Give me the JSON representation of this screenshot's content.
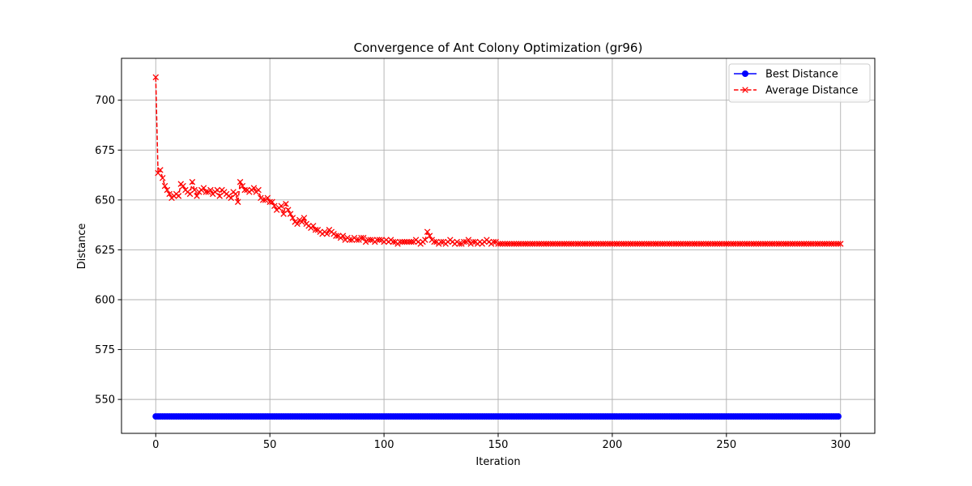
{
  "chart_data": {
    "type": "line",
    "title": "Convergence of Ant Colony Optimization (gr96)",
    "xlabel": "Iteration",
    "ylabel": "Distance",
    "xlim": [
      -15,
      315
    ],
    "ylim": [
      533,
      721
    ],
    "xticks": [
      0,
      50,
      100,
      150,
      200,
      250,
      300
    ],
    "xtick_labels": [
      "0",
      "50",
      "100",
      "150",
      "200",
      "250",
      "300"
    ],
    "yticks": [
      550,
      575,
      600,
      625,
      650,
      675,
      700
    ],
    "ytick_labels": [
      "550",
      "575",
      "600",
      "625",
      "650",
      "675",
      "700"
    ],
    "grid": true,
    "legend_position": "top-right",
    "series": [
      {
        "name": "Best Distance",
        "color": "#0000ff",
        "marker": "circle",
        "linestyle": "solid",
        "x_start": 0,
        "x_end": 299,
        "constant_value": 541.5
      },
      {
        "name": "Average Distance",
        "color": "#ff0000",
        "marker": "x",
        "linestyle": "dashed",
        "x_start": 0,
        "values": [
          711.5,
          663.5,
          665,
          661,
          657,
          655,
          653,
          651,
          652,
          653,
          652,
          658,
          657,
          655,
          654,
          653,
          659,
          655,
          652,
          654,
          655,
          656,
          654,
          654,
          655,
          653,
          654,
          655,
          652,
          655,
          654,
          653,
          652,
          651,
          654,
          653,
          649,
          659,
          657,
          655,
          655,
          654,
          655,
          656,
          654,
          655,
          651,
          650,
          650,
          651,
          649,
          649,
          647,
          645,
          646,
          647,
          643,
          648,
          645,
          643,
          641,
          639,
          638,
          640,
          639,
          641,
          638,
          637,
          636,
          637,
          635,
          635,
          634,
          633,
          634,
          633,
          635,
          634,
          633,
          632,
          632,
          631,
          632,
          630,
          631,
          630,
          630,
          631,
          630,
          630,
          631,
          631,
          629,
          630,
          630,
          630,
          629,
          630,
          630,
          630,
          629,
          630,
          629,
          630,
          629,
          629,
          628,
          629,
          629,
          629,
          629,
          629,
          629,
          629,
          630,
          629,
          628,
          629,
          630,
          634,
          632,
          630,
          629,
          629,
          628,
          629,
          629,
          628,
          629,
          630,
          629,
          628,
          629,
          628,
          628,
          629,
          629,
          630,
          628,
          629,
          629,
          628,
          629,
          628,
          629,
          630,
          629,
          628,
          629,
          629,
          628,
          628,
          628,
          628,
          628,
          628,
          628,
          628,
          628,
          628,
          628,
          628,
          628,
          628,
          628,
          628,
          628,
          628,
          628,
          628,
          628,
          628,
          628,
          628,
          628,
          628,
          628,
          628,
          628,
          628,
          628,
          628,
          628,
          628,
          628,
          628,
          628,
          628,
          628,
          628,
          628,
          628,
          628,
          628,
          628,
          628,
          628,
          628,
          628,
          628,
          628,
          628,
          628,
          628,
          628,
          628,
          628,
          628,
          628,
          628,
          628,
          628,
          628,
          628,
          628,
          628,
          628,
          628,
          628,
          628,
          628,
          628,
          628,
          628,
          628,
          628,
          628,
          628,
          628,
          628,
          628,
          628,
          628,
          628,
          628,
          628,
          628,
          628,
          628,
          628,
          628,
          628,
          628,
          628,
          628,
          628,
          628,
          628,
          628,
          628,
          628,
          628,
          628,
          628,
          628,
          628,
          628,
          628,
          628,
          628,
          628,
          628,
          628,
          628,
          628,
          628,
          628,
          628,
          628,
          628,
          628,
          628,
          628,
          628,
          628,
          628,
          628,
          628,
          628,
          628,
          628,
          628,
          628,
          628,
          628,
          628,
          628,
          628,
          628,
          628,
          628,
          628,
          628,
          628,
          628,
          628,
          628,
          628,
          628,
          628,
          628
        ]
      }
    ]
  }
}
